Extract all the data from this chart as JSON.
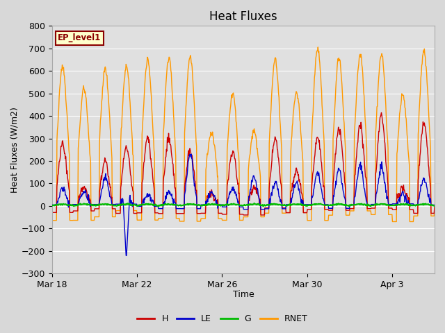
{
  "title": "Heat Fluxes",
  "xlabel": "Time",
  "ylabel": "Heat Fluxes (W/m2)",
  "ylim": [
    -300,
    800
  ],
  "yticks": [
    -300,
    -200,
    -100,
    0,
    100,
    200,
    300,
    400,
    500,
    600,
    700,
    800
  ],
  "background_color": "#d8d8d8",
  "plot_bg_color": "#e0e0e0",
  "grid_color": "#ffffff",
  "colors": {
    "H": "#cc0000",
    "LE": "#0000cc",
    "G": "#00bb00",
    "RNET": "#ff9900"
  },
  "legend_label": "EP_level1",
  "x_tick_labels": [
    "Mar 18",
    "Mar 22",
    "Mar 26",
    "Mar 30",
    "Apr 3"
  ],
  "x_tick_positions": [
    0,
    4,
    8,
    12,
    16
  ],
  "line_width": 1.0,
  "font_size": 9
}
